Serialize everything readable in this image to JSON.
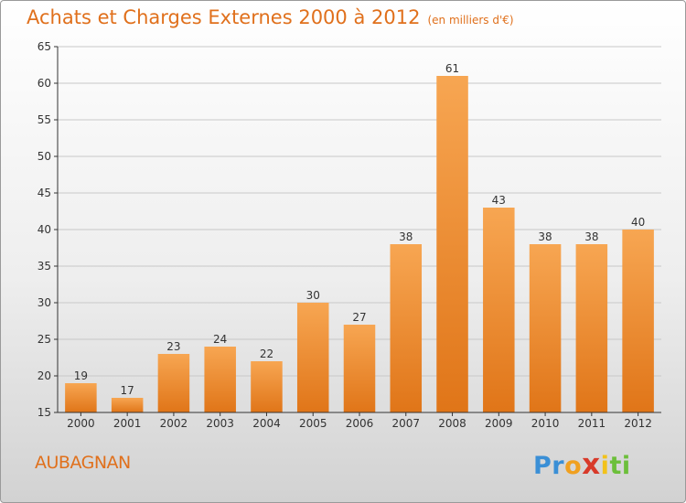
{
  "header": {
    "title": "Achats et Charges Externes 2000 à 2012",
    "subtitle": "(en milliers d'€)"
  },
  "footer": {
    "city": "AUBAGNAN",
    "logo_parts": [
      {
        "text": "Pr",
        "color": "#3a8fd6"
      },
      {
        "text": "o",
        "color": "#f0a020"
      },
      {
        "text": "x",
        "color": "#d83a2a"
      },
      {
        "text": "i",
        "color": "#f2c21a"
      },
      {
        "text": "ti",
        "color": "#6cbf3a"
      }
    ]
  },
  "colors": {
    "title": "#e0701c",
    "bar_top": "#f7a652",
    "bar_bottom": "#e07518",
    "axis": "#333333",
    "grid": "#c8c8c8"
  },
  "chart_data": {
    "type": "bar",
    "categories": [
      "2000",
      "2001",
      "2002",
      "2003",
      "2004",
      "2005",
      "2006",
      "2007",
      "2008",
      "2009",
      "2010",
      "2011",
      "2012"
    ],
    "values": [
      19,
      17,
      23,
      24,
      22,
      30,
      27,
      38,
      61,
      43,
      38,
      38,
      40
    ],
    "ylim": [
      15,
      65
    ],
    "yticks": [
      15,
      20,
      25,
      30,
      35,
      40,
      45,
      50,
      55,
      60,
      65
    ],
    "title": "Achats et Charges Externes 2000 à 2012",
    "xlabel": "",
    "ylabel": "",
    "grid": true,
    "legend": "none"
  }
}
